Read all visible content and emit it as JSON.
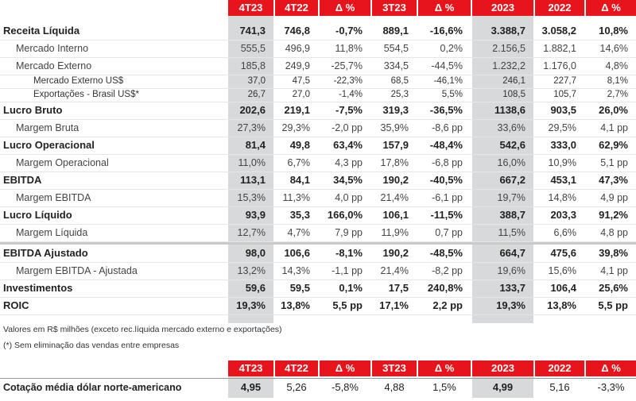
{
  "header": [
    "4T23",
    "4T22",
    "Δ %",
    "3T23",
    "Δ %",
    "2023",
    "2022",
    "Δ %"
  ],
  "rows": [
    {
      "label": "Receita Líquida",
      "style": "b",
      "indent": 0,
      "values": [
        "741,3",
        "746,8",
        "-0,7%",
        "889,1",
        "-16,6%",
        "3.388,7",
        "3.058,2",
        "10,8%"
      ]
    },
    {
      "label": "Mercado Interno",
      "style": "n",
      "indent": 1,
      "values": [
        "555,5",
        "496,9",
        "11,8%",
        "554,5",
        "0,2%",
        "2.156,5",
        "1.882,1",
        "14,6%"
      ]
    },
    {
      "label": "Mercado Externo",
      "style": "n",
      "indent": 1,
      "values": [
        "185,8",
        "249,9",
        "-25,7%",
        "334,5",
        "-44,5%",
        "1.232,2",
        "1.176,0",
        "4,8%"
      ]
    },
    {
      "label": "Mercado Externo US$",
      "style": "sm",
      "indent": 2,
      "values": [
        "37,0",
        "47,5",
        "-22,3%",
        "68,5",
        "-46,1%",
        "246,1",
        "227,7",
        "8,1%"
      ]
    },
    {
      "label": "Exportações - Brasil US$*",
      "style": "sm",
      "indent": 2,
      "values": [
        "26,7",
        "27,0",
        "-1,4%",
        "25,3",
        "5,5%",
        "108,5",
        "105,7",
        "2,7%"
      ]
    },
    {
      "label": "Lucro Bruto",
      "style": "b",
      "indent": 0,
      "values": [
        "202,6",
        "219,1",
        "-7,5%",
        "319,3",
        "-36,5%",
        "1138,6",
        "903,5",
        "26,0%"
      ]
    },
    {
      "label": "Margem Bruta",
      "style": "n",
      "indent": 1,
      "values": [
        "27,3%",
        "29,3%",
        "-2,0 pp",
        "35,9%",
        "-8,6 pp",
        "33,6%",
        "29,5%",
        "4,1 pp"
      ]
    },
    {
      "label": "Lucro Operacional",
      "style": "b",
      "indent": 0,
      "values": [
        "81,4",
        "49,8",
        "63,4%",
        "157,9",
        "-48,4%",
        "542,6",
        "333,0",
        "62,9%"
      ]
    },
    {
      "label": "Margem Operacional",
      "style": "n",
      "indent": 1,
      "values": [
        "11,0%",
        "6,7%",
        "4,3 pp",
        "17,8%",
        "-6,8 pp",
        "16,0%",
        "10,9%",
        "5,1 pp"
      ]
    },
    {
      "label": "EBITDA",
      "style": "b",
      "indent": 0,
      "values": [
        "113,1",
        "84,1",
        "34,5%",
        "190,2",
        "-40,5%",
        "667,2",
        "453,1",
        "47,3%"
      ]
    },
    {
      "label": "Margem EBITDA",
      "style": "n",
      "indent": 1,
      "values": [
        "15,3%",
        "11,3%",
        "4,0 pp",
        "21,4%",
        "-6,1 pp",
        "19,7%",
        "14,8%",
        "4,9 pp"
      ]
    },
    {
      "label": "Lucro Líquido",
      "style": "b",
      "indent": 0,
      "values": [
        "93,9",
        "35,3",
        "166,0%",
        "106,1",
        "-11,5%",
        "388,7",
        "203,3",
        "91,2%"
      ]
    },
    {
      "label": "Margem Líquida",
      "style": "n",
      "indent": 1,
      "values": [
        "12,7%",
        "4,7%",
        "7,9 pp",
        "11,9%",
        "0,7 pp",
        "11,5%",
        "6,6%",
        "4,8 pp"
      ]
    },
    {
      "label": "EBITDA Ajustado",
      "style": "b",
      "indent": 0,
      "values": [
        "98,0",
        "106,6",
        "-8,1%",
        "190,2",
        "-48,5%",
        "664,7",
        "475,6",
        "39,8%"
      ]
    },
    {
      "label": "Margem EBITDA - Ajustada",
      "style": "n",
      "indent": 1,
      "values": [
        "13,2%",
        "14,3%",
        "-1,1 pp",
        "21,4%",
        "-8,2 pp",
        "19,6%",
        "15,6%",
        "4,1 pp"
      ]
    },
    {
      "label": "Investimentos",
      "style": "b",
      "indent": 0,
      "values": [
        "59,6",
        "59,5",
        "0,1%",
        "17,5",
        "240,8%",
        "133,7",
        "106,4",
        "25,6%"
      ]
    },
    {
      "label": "ROIC",
      "style": "b",
      "indent": 0,
      "values": [
        "19,3%",
        "13,8%",
        "5,5 pp",
        "17,1%",
        "2,2 pp",
        "19,3%",
        "13,8%",
        "5,5 pp"
      ]
    }
  ],
  "notes": [
    "Valores em R$ milhões (exceto rec.líquida mercado externo e exportações)",
    "(*) Sem eliminação das vendas entre empresas"
  ],
  "header2": [
    "4T23",
    "4T22",
    "Δ %",
    "3T23",
    "Δ %",
    "2023",
    "2022",
    "Δ %"
  ],
  "fx_row": {
    "label": "Cotação média dólar norte-americano",
    "values": [
      "4,95",
      "5,26",
      "-5,8%",
      "4,88",
      "1,5%",
      "4,99",
      "5,16",
      "-3,3%"
    ]
  },
  "colors": {
    "header_red": "#e8141c",
    "highlight_grey": "#d8d9da"
  }
}
